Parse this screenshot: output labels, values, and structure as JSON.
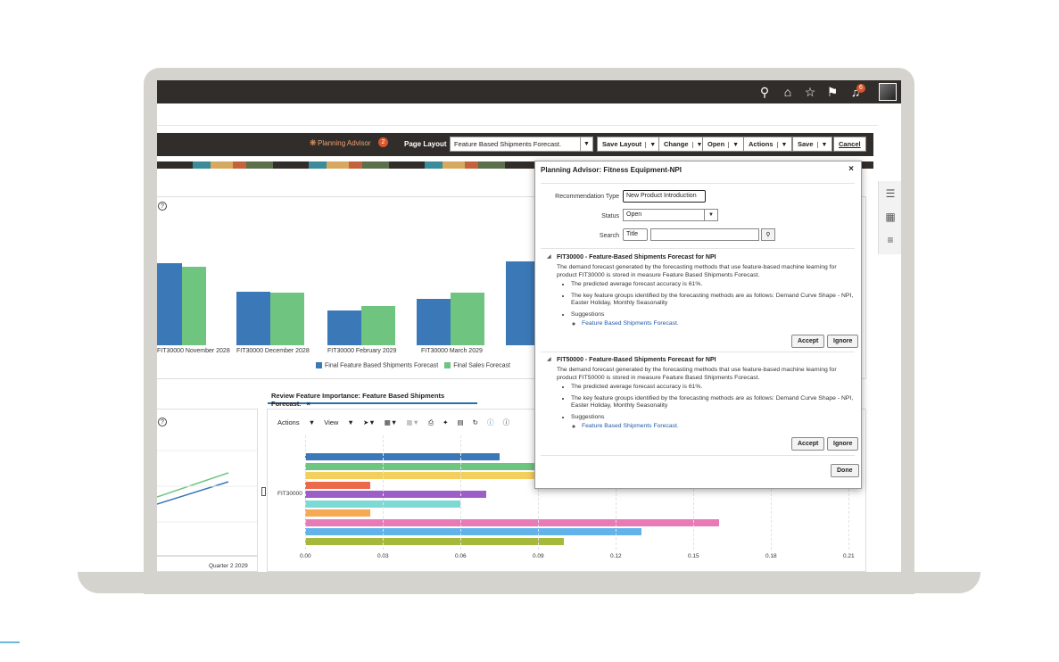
{
  "toolbar": {
    "planning_advisor": "Planning Advisor",
    "planning_advisor_count": "2",
    "page_layout_label": "Page Layout",
    "page_layout_value": "Feature Based Shipments Forecast.",
    "save_layout": "Save Layout",
    "change": "Change",
    "open": "Open",
    "actions": "Actions",
    "save": "Save",
    "cancel": "Cancel"
  },
  "topbar": {
    "notification_count": "6"
  },
  "bar_chart": {
    "type": "bar",
    "categories": [
      "FIT30000 November 2028",
      "FIT30000 December 2028",
      "FIT30000 February 2029",
      "FIT30000 March 2029"
    ],
    "series": [
      {
        "name": "Final Feature Based Shipments Forecast",
        "color": "#3a78b8"
      },
      {
        "name": "Final Sales Forecast",
        "color": "#6fc580"
      }
    ]
  },
  "review_tab": {
    "label": "Review Feature Importance: Feature Based Shipments Forecast.",
    "close": "×"
  },
  "lower_left": {
    "x_label": "Quarter 2 2029"
  },
  "lower_toolbar": {
    "actions": "Actions",
    "view": "View"
  },
  "hbar_chart": {
    "type": "bar",
    "category": "FIT30000",
    "x_ticks": [
      "0.00",
      "0.03",
      "0.06",
      "0.09",
      "0.12",
      "0.15",
      "0.18",
      "0.21"
    ],
    "xlim": [
      0,
      0.21
    ],
    "values": [
      0.075,
      0.09,
      0.09,
      0.025,
      0.07,
      0.06,
      0.025,
      0.16,
      0.13,
      0.1
    ],
    "colors": [
      "#3a78b8",
      "#6fc580",
      "#f5cf5e",
      "#ec6a4a",
      "#9b5fc7",
      "#7dd9d4",
      "#f5a953",
      "#e97ab8",
      "#62b3ea",
      "#a7b93b"
    ]
  },
  "dialog": {
    "title": "Planning Advisor: Fitness Equipment-NPI",
    "close": "×",
    "recommendation_type_label": "Recommendation Type",
    "recommendation_type_value": "New Product Introduction",
    "status_label": "Status",
    "status_value": "Open",
    "search_label": "Search",
    "search_field": "Title",
    "recs": [
      {
        "title": "FIT30000 - Feature-Based Shipments Forecast for NPI",
        "body": "The demand forecast generated by the forecasting methods that use feature-based machine learning for product FIT30000 is stored in measure Feature Based Shipments Forecast.",
        "bullet1": "The predicted average forecast accuracy is 61%.",
        "bullet2": "The key feature groups identified by the forecasting methods are as follows: Demand Curve Shape - NPI, Easter Holiday, Monthly Seasonality",
        "bullet3": "Suggestions",
        "link": "Feature Based Shipments Forecast.",
        "accept": "Accept",
        "ignore": "Ignore"
      },
      {
        "title": "FIT50000 - Feature-Based Shipments Forecast for NPI",
        "body": "The demand forecast generated by the forecasting methods that use feature-based machine learning for product FIT50000 is stored in measure Feature Based Shipments Forecast.",
        "bullet1": "The predicted average forecast accuracy is 61%.",
        "bullet2": "The key feature groups identified by the forecasting methods are as follows: Demand Curve Shape - NPI, Easter Holiday, Monthly Seasonality",
        "bullet3": "Suggestions",
        "link": "Feature Based Shipments Forecast.",
        "accept": "Accept",
        "ignore": "Ignore"
      }
    ],
    "done": "Done"
  }
}
